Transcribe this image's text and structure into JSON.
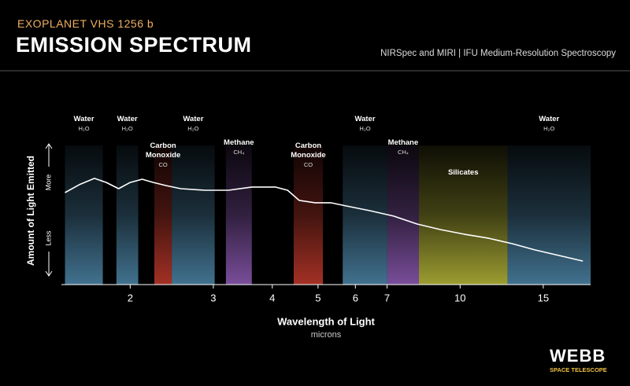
{
  "header": {
    "kicker": "EXOPLANET VHS 1256 b",
    "title": "EMISSION SPECTRUM",
    "subtitle": "NIRSpec and MIRI | IFU Medium-Resolution Spectroscopy"
  },
  "chart_data": {
    "type": "line",
    "x_label": "Wavelength of Light",
    "x_unit": "microns",
    "y_label": "Amount of Light Emitted",
    "y_high": "More",
    "y_low": "Less",
    "xscale": "log",
    "xlim": [
      1.43,
      18.9
    ],
    "xticks": [
      2,
      3,
      4,
      5,
      6,
      7,
      10,
      15
    ],
    "ylim": [
      0,
      100
    ],
    "series": [
      {
        "name": "Spectrum",
        "color": "#ffffff",
        "x": [
          1.455,
          1.56,
          1.68,
          1.78,
          1.89,
          2.0,
          2.12,
          2.24,
          2.38,
          2.56,
          2.88,
          3.23,
          3.62,
          4.06,
          4.31,
          4.56,
          4.93,
          5.32,
          5.74,
          6.44,
          7.23,
          8.11,
          9.1,
          10.2,
          11.5,
          12.9,
          14.4,
          16.2,
          18.2
        ],
        "values": [
          66.1,
          71.8,
          76.3,
          73.4,
          68.9,
          73.4,
          75.7,
          73.4,
          71.2,
          68.9,
          67.8,
          67.8,
          70.1,
          70.1,
          67.8,
          60.5,
          58.8,
          58.8,
          56.5,
          53.1,
          49.2,
          43.5,
          39.5,
          36.2,
          33.3,
          29.4,
          24.9,
          20.9,
          16.9
        ]
      }
    ],
    "bands": [
      {
        "range": [
          1.455,
          1.75
        ],
        "label": "Water",
        "formula": "H₂O",
        "color": "#4d86a8"
      },
      {
        "range": [
          1.87,
          2.08
        ],
        "label": "Water",
        "formula": "H₂O",
        "color": "#4d86a8"
      },
      {
        "range": [
          2.25,
          2.45
        ],
        "label": "Carbon Monoxide",
        "formula": "CO",
        "color": "#c0392b"
      },
      {
        "range": [
          2.45,
          3.02
        ],
        "label": "Water",
        "formula": "H₂O",
        "color": "#4d86a8"
      },
      {
        "range": [
          3.19,
          3.62
        ],
        "label": "Methane",
        "formula": "CH₄",
        "color": "#8e5bb5"
      },
      {
        "range": [
          4.44,
          5.12
        ],
        "label": "Carbon Monoxide",
        "formula": "CO",
        "color": "#c0392b"
      },
      {
        "range": [
          5.64,
          7.01
        ],
        "label": "Water",
        "formula": "H₂O",
        "color": "#4d86a8"
      },
      {
        "range": [
          7.01,
          8.18
        ],
        "label": "Methane",
        "formula": "CH₄",
        "color": "#8e5bb5"
      },
      {
        "range": [
          8.18,
          12.6
        ],
        "label": "Silicates",
        "color": "#b8b83a"
      },
      {
        "range": [
          12.6,
          18.9
        ],
        "label": "Water",
        "formula": "H₂O",
        "color": "#4d86a8"
      }
    ]
  },
  "logo": {
    "name": "WEBB",
    "tagline": "SPACE TELESCOPE"
  }
}
